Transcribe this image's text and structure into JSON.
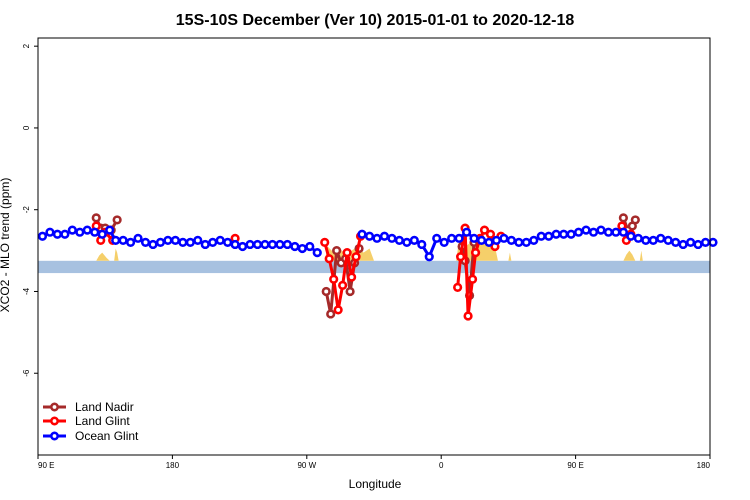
{
  "chart_data": {
    "type": "line",
    "title": "15S-10S December (Ver 10)   2015-01-01 to 2020-12-18",
    "xlabel": "Longitude",
    "ylabel": "XCO2 - MLO trend (ppm)",
    "xlim": [
      90,
      540
    ],
    "ylim": [
      -8,
      2.2
    ],
    "x_ticks": [
      {
        "value": 90,
        "label": "90 E"
      },
      {
        "value": 180,
        "label": "180"
      },
      {
        "value": 270,
        "label": "90 W"
      },
      {
        "value": 360,
        "label": "0"
      },
      {
        "value": 450,
        "label": "90 E"
      },
      {
        "value": 540,
        "label": "180"
      }
    ],
    "y_ticks": [
      {
        "value": 2,
        "label": "2"
      },
      {
        "value": 0,
        "label": "0"
      },
      {
        "value": -2,
        "label": "-2"
      },
      {
        "value": -4,
        "label": "-4"
      },
      {
        "value": -6,
        "label": "-6"
      }
    ],
    "band": {
      "y_low": -3.55,
      "y_high": -3.25,
      "color": "#a7c1e0"
    },
    "land_fill_color": "#f5cf6a",
    "land_fill": [
      {
        "x": [
          129,
          131,
          133,
          136,
          138
        ],
        "y": [
          -3.25,
          -3.12,
          -3.05,
          -3.18,
          -3.25
        ]
      },
      {
        "x": [
          141,
          142,
          143,
          144
        ],
        "y": [
          -3.25,
          -2.95,
          -3.05,
          -3.25
        ]
      },
      {
        "x": [
          282,
          284,
          288,
          292,
          296,
          300,
          304,
          308,
          312,
          315
        ],
        "y": [
          -3.25,
          -2.9,
          -3.05,
          -2.95,
          -3.1,
          -3.0,
          -2.9,
          -3.05,
          -2.95,
          -3.25
        ]
      },
      {
        "x": [
          370,
          372,
          376,
          380,
          384,
          388,
          392,
          396,
          398
        ],
        "y": [
          -3.25,
          -2.75,
          -2.9,
          -2.8,
          -2.85,
          -2.7,
          -2.8,
          -2.9,
          -3.25
        ]
      },
      {
        "x": [
          405,
          406,
          407
        ],
        "y": [
          -3.25,
          -3.05,
          -3.25
        ]
      },
      {
        "x": [
          482,
          484,
          486,
          488,
          490
        ],
        "y": [
          -3.25,
          -3.1,
          -3.0,
          -3.1,
          -3.25
        ]
      },
      {
        "x": [
          493,
          494,
          495
        ],
        "y": [
          -3.25,
          -3.0,
          -3.25
        ]
      }
    ],
    "series": [
      {
        "name": "Land Nadir",
        "color": "#a52a2a",
        "segments": [
          {
            "x": [
              129,
              132,
              135,
              139,
              143
            ],
            "y": [
              -2.2,
              -2.45,
              -2.45,
              -2.5,
              -2.25
            ]
          },
          {
            "x": [
              283,
              286,
              290,
              293,
              296,
              299,
              302,
              305
            ],
            "y": [
              -4.0,
              -4.55,
              -3.0,
              -3.3,
              -3.2,
              -4.0,
              -3.3,
              -2.95
            ]
          },
          {
            "x": [
              374,
              376,
              379,
              382,
              385
            ],
            "y": [
              -2.9,
              -3.25,
              -4.1,
              -2.8,
              -2.75
            ]
          },
          {
            "x": [
              482,
              485,
              488,
              490
            ],
            "y": [
              -2.2,
              -2.5,
              -2.4,
              -2.25
            ]
          }
        ]
      },
      {
        "name": "Land Glint",
        "color": "#ff0000",
        "segments": [
          {
            "x": [
              129,
              132,
              135,
              140
            ],
            "y": [
              -2.4,
              -2.75,
              -2.55,
              -2.75
            ]
          },
          {
            "x": [
              222
            ],
            "y": [
              -2.7
            ]
          },
          {
            "x": [
              282,
              285,
              288,
              291,
              294,
              297,
              300,
              303,
              306
            ],
            "y": [
              -2.8,
              -3.2,
              -3.7,
              -4.45,
              -3.85,
              -3.05,
              -3.65,
              -3.15,
              -2.65
            ]
          },
          {
            "x": [
              371,
              373,
              376,
              378,
              381,
              383,
              386,
              389,
              393,
              396,
              400
            ],
            "y": [
              -3.9,
              -3.15,
              -2.45,
              -4.6,
              -3.7,
              -3.05,
              -2.7,
              -2.5,
              -2.6,
              -2.9,
              -2.65
            ]
          },
          {
            "x": [
              481,
              484,
              487
            ],
            "y": [
              -2.4,
              -2.75,
              -2.6
            ]
          }
        ]
      },
      {
        "name": "Ocean Glint",
        "color": "#0000ff",
        "segments": [
          {
            "x": [
              93,
              98,
              103,
              108,
              113,
              118,
              123,
              128,
              133,
              138,
              142,
              147,
              152,
              157,
              162,
              167,
              172,
              177,
              182,
              187,
              192,
              197,
              202,
              207,
              212,
              217,
              222,
              227,
              232,
              237,
              242,
              247,
              252,
              257,
              262,
              267,
              272,
              277
            ],
            "y": [
              -2.65,
              -2.55,
              -2.6,
              -2.6,
              -2.5,
              -2.55,
              -2.5,
              -2.55,
              -2.6,
              -2.5,
              -2.75,
              -2.75,
              -2.8,
              -2.7,
              -2.8,
              -2.85,
              -2.8,
              -2.75,
              -2.75,
              -2.8,
              -2.8,
              -2.75,
              -2.85,
              -2.8,
              -2.75,
              -2.8,
              -2.85,
              -2.9,
              -2.85,
              -2.85,
              -2.85,
              -2.85,
              -2.85,
              -2.85,
              -2.9,
              -2.95,
              -2.9,
              -3.05
            ]
          },
          {
            "x": [
              307,
              312,
              317,
              322,
              327,
              332,
              337,
              342,
              347,
              352,
              357,
              362,
              367,
              372,
              377,
              382,
              387,
              392,
              397,
              402,
              407,
              412,
              417,
              422,
              427,
              432,
              437,
              442,
              447,
              452,
              457,
              462,
              467,
              472,
              477,
              482,
              487,
              492,
              497,
              502,
              507,
              512,
              517,
              522,
              527,
              532,
              537,
              542
            ],
            "y": [
              -2.6,
              -2.65,
              -2.7,
              -2.65,
              -2.7,
              -2.75,
              -2.8,
              -2.75,
              -2.85,
              -3.15,
              -2.7,
              -2.8,
              -2.7,
              -2.7,
              -2.55,
              -2.7,
              -2.75,
              -2.8,
              -2.75,
              -2.7,
              -2.75,
              -2.8,
              -2.8,
              -2.75,
              -2.65,
              -2.65,
              -2.6,
              -2.6,
              -2.6,
              -2.55,
              -2.5,
              -2.55,
              -2.5,
              -2.55,
              -2.55,
              -2.55,
              -2.65,
              -2.7,
              -2.75,
              -2.75,
              -2.7,
              -2.75,
              -2.8,
              -2.85,
              -2.8,
              -2.85,
              -2.8,
              -2.8
            ]
          }
        ]
      }
    ],
    "legend": {
      "position": "bottom-left"
    }
  }
}
